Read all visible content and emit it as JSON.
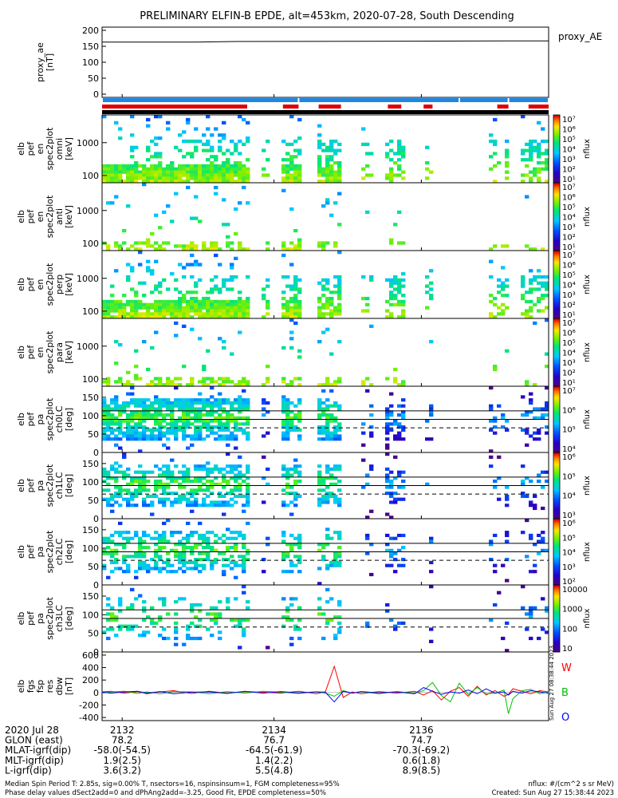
{
  "title": "PRELIMINARY ELFIN-B EPDE, alt=453km, 2020-07-28, South Descending",
  "colors": {
    "spin_bar": "#1e88e5",
    "science_bar": "#e00000",
    "fgm_bar": "#000000",
    "res_r": "#ff0000",
    "res_g": "#00c000",
    "res_b": "#0000ff"
  },
  "chart_data": [
    {
      "type": "line",
      "ylabel": "proxy_ae\n[nT]",
      "side_label": "proxy_AE",
      "ylim": [
        -10,
        210
      ],
      "yticks": [
        0,
        50,
        100,
        150,
        200
      ],
      "x": [
        0,
        0.2,
        0.3,
        1.0
      ],
      "values": [
        163,
        163,
        165,
        167
      ]
    },
    {
      "type": "bar-strips",
      "spin_bar_segments": [
        [
          0,
          0.44
        ],
        [
          0.44,
          0.8
        ],
        [
          0.8,
          0.91
        ],
        [
          0.91,
          1.0
        ]
      ],
      "science_segments": [
        [
          0,
          0.325
        ],
        [
          0.405,
          0.44
        ],
        [
          0.485,
          0.535
        ],
        [
          0.64,
          0.67
        ],
        [
          0.72,
          0.74
        ],
        [
          0.885,
          0.91
        ],
        [
          0.955,
          1.0
        ]
      ]
    },
    {
      "type": "heatmap",
      "ylabel": "elb\npef\nen\nspec2plot\nomni\n[keV]",
      "y_scale": "log",
      "yticks": [
        100,
        1000
      ],
      "ylim": [
        60,
        7000
      ],
      "colorbar": {
        "ticks": [
          "10⁷",
          "10⁶",
          "10⁵",
          "10⁴",
          "10³",
          "10²",
          "10¹"
        ],
        "label": "nflux"
      },
      "intensity": 1.0
    },
    {
      "type": "heatmap",
      "ylabel": "elb\npef\nen\nspec2plot\nanti\n[keV]",
      "y_scale": "log",
      "yticks": [
        100,
        1000
      ],
      "ylim": [
        60,
        7000
      ],
      "colorbar": {
        "ticks": [
          "10⁷",
          "10⁶",
          "10⁵",
          "10⁴",
          "10³",
          "10²",
          "10¹"
        ],
        "label": "nflux"
      },
      "intensity": 0.15
    },
    {
      "type": "heatmap",
      "ylabel": "elb\npef\nen\nspec2plot\nperp\n[keV]",
      "y_scale": "log",
      "yticks": [
        100,
        1000
      ],
      "ylim": [
        60,
        7000
      ],
      "colorbar": {
        "ticks": [
          "10⁷",
          "10⁶",
          "10⁵",
          "10⁴",
          "10³",
          "10²",
          "10¹"
        ],
        "label": "nflux"
      },
      "intensity": 0.95
    },
    {
      "type": "heatmap",
      "ylabel": "elb\npef\nen\nspec2plot\npara\n[keV]",
      "y_scale": "log",
      "yticks": [
        100,
        1000
      ],
      "ylim": [
        60,
        7000
      ],
      "colorbar": {
        "ticks": [
          "10⁷",
          "10⁶",
          "10⁵",
          "10⁴",
          "10³",
          "10²",
          "10¹"
        ],
        "label": "nflux"
      },
      "intensity": 0.12
    },
    {
      "type": "heatmap",
      "ylabel": "elb\npef\npa\nspec2plot\nch0LC\n[deg]",
      "ylim": [
        0,
        180
      ],
      "yticks": [
        0,
        50,
        100,
        150
      ],
      "lines": [
        113,
        90
      ],
      "dashed": [
        67
      ],
      "colorbar": {
        "ticks": [
          "10⁷",
          "10⁶",
          "10⁵",
          "10⁴"
        ],
        "label": "nflux"
      },
      "intensity": 1.0
    },
    {
      "type": "heatmap",
      "ylabel": "elb\npef\npa\nspec2plot\nch1LC\n[deg]",
      "ylim": [
        0,
        180
      ],
      "yticks": [
        0,
        50,
        100,
        150
      ],
      "lines": [
        113,
        90
      ],
      "dashed": [
        67
      ],
      "colorbar": {
        "ticks": [
          "10⁶",
          "10⁵",
          "10⁴",
          "10³"
        ],
        "label": "nflux"
      },
      "intensity": 0.7
    },
    {
      "type": "heatmap",
      "ylabel": "elb\npef\npa\nspec2plot\nch2LC\n[deg]",
      "ylim": [
        0,
        180
      ],
      "yticks": [
        0,
        50,
        100,
        150
      ],
      "lines": [
        113,
        90
      ],
      "dashed": [
        67
      ],
      "colorbar": {
        "ticks": [
          "10⁶",
          "10⁵",
          "10⁴",
          "10³",
          "10²"
        ],
        "label": "nflux"
      },
      "intensity": 0.6
    },
    {
      "type": "heatmap",
      "ylabel": "elb\npef\npa\nspec2plot\nch3LC\n[deg]",
      "ylim": [
        0,
        180
      ],
      "yticks": [
        0,
        50,
        100,
        150
      ],
      "lines": [
        113,
        90
      ],
      "dashed": [
        67
      ],
      "colorbar": {
        "ticks": [
          "10000",
          "1000",
          "100",
          "10"
        ],
        "label": "nflux"
      },
      "intensity": 0.3
    },
    {
      "type": "line",
      "ylabel": "elb\nfgs\nfsp\nres\ndbw\n[nT]",
      "ylim": [
        -450,
        650
      ],
      "yticks": [
        -400,
        -200,
        0,
        200,
        400,
        600
      ],
      "legend": [
        "W",
        "B",
        "O"
      ],
      "legend_placement": "right",
      "series_colors": [
        "#ff0000",
        "#00c000",
        "#0000ff"
      ],
      "x": [
        0,
        0.02,
        0.05,
        0.08,
        0.1,
        0.13,
        0.16,
        0.2,
        0.24,
        0.28,
        0.32,
        0.36,
        0.4,
        0.44,
        0.48,
        0.5,
        0.52,
        0.54,
        0.56,
        0.58,
        0.62,
        0.66,
        0.7,
        0.72,
        0.74,
        0.76,
        0.78,
        0.8,
        0.82,
        0.84,
        0.86,
        0.88,
        0.9,
        0.91,
        0.92,
        0.94,
        0.96,
        0.98,
        1.0
      ],
      "series": [
        {
          "name": "W",
          "values": [
            10,
            20,
            -10,
            15,
            -20,
            10,
            30,
            -15,
            20,
            -10,
            15,
            5,
            -10,
            20,
            -20,
            10,
            420,
            -80,
            10,
            -20,
            15,
            -10,
            20,
            -40,
            30,
            -120,
            20,
            80,
            -60,
            100,
            -40,
            30,
            -60,
            -30,
            60,
            20,
            -20,
            30,
            10
          ]
        },
        {
          "name": "B",
          "values": [
            -10,
            10,
            20,
            -15,
            10,
            -20,
            15,
            10,
            -20,
            15,
            -10,
            20,
            5,
            -15,
            10,
            -10,
            -60,
            30,
            -10,
            10,
            -20,
            15,
            -10,
            30,
            160,
            -50,
            -150,
            150,
            -30,
            80,
            -20,
            -10,
            40,
            -340,
            -100,
            30,
            50,
            -20,
            10
          ]
        },
        {
          "name": "O",
          "values": [
            5,
            -10,
            10,
            20,
            -10,
            15,
            -20,
            5,
            10,
            -15,
            20,
            -10,
            15,
            -5,
            10,
            5,
            -150,
            20,
            -10,
            15,
            -5,
            10,
            -20,
            80,
            20,
            -30,
            10,
            -10,
            40,
            -20,
            60,
            -10,
            10,
            -40,
            20,
            -10,
            30,
            10,
            -10
          ]
        }
      ]
    }
  ],
  "x_axis": {
    "ticks": [
      "2132",
      "2134",
      "2136"
    ],
    "rows": [
      {
        "label": "2020 Jul 28",
        "values": [
          "",
          "",
          ""
        ]
      },
      {
        "label": "GLON (east)",
        "values": [
          "78.2",
          "76.7",
          "74.7"
        ]
      },
      {
        "label": "MLAT-igrf(dip)",
        "values": [
          "-58.0(-54.5)",
          "-64.5(-61.9)",
          "-70.3(-69.2)"
        ]
      },
      {
        "label": "MLT-igrf(dip)",
        "values": [
          "1.9(2.5)",
          "1.4(2.2)",
          "0.6(1.8)"
        ]
      },
      {
        "label": "L-igrf(dip)",
        "values": [
          "3.6(3.2)",
          "5.5(4.8)",
          "8.9(8.5)"
        ]
      }
    ]
  },
  "footer": {
    "line1": "Median Spin Period T: 2.85s, sig=0.00% T, nsectors=16, nspinsinsum=1, FGM completeness=95%",
    "line2": "Phase delay values dSect2add=0 and dPhAng2add=-3.25, Good Fit, EPDE completeness=50%",
    "units": "nflux: #/(cm^2 s sr MeV)",
    "created": "Created: Sun Aug 27 15:38:44 2023",
    "vertical_stamp": "Sun Aug 27 08:38:44 2023"
  }
}
